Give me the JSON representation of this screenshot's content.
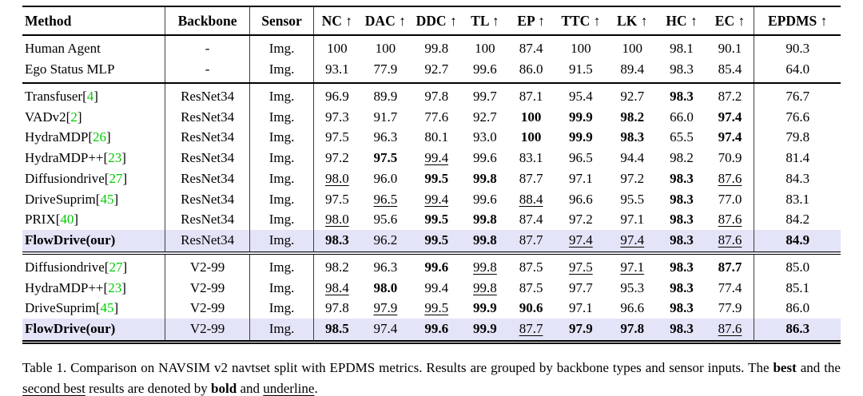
{
  "colors": {
    "highlight_row": "#e4e4f8",
    "citation_green": "#00cc00",
    "rule_black": "#000000",
    "divider_gray": "#3f3f3f"
  },
  "table": {
    "header": [
      {
        "key": "method",
        "label": "Method"
      },
      {
        "key": "backbone",
        "label": "Backbone"
      },
      {
        "key": "sensor",
        "label": "Sensor"
      },
      {
        "key": "nc",
        "label": "NC",
        "arrow": "↑"
      },
      {
        "key": "dac",
        "label": "DAC",
        "arrow": "↑"
      },
      {
        "key": "ddc",
        "label": "DDC",
        "arrow": "↑"
      },
      {
        "key": "tl",
        "label": "TL",
        "arrow": "↑"
      },
      {
        "key": "ep",
        "label": "EP",
        "arrow": "↑"
      },
      {
        "key": "ttc",
        "label": "TTC",
        "arrow": "↑"
      },
      {
        "key": "lk",
        "label": "LK",
        "arrow": "↑"
      },
      {
        "key": "hc",
        "label": "HC",
        "arrow": "↑"
      },
      {
        "key": "ec",
        "label": "EC",
        "arrow": "↑"
      },
      {
        "key": "epdms",
        "label": "EPDMS",
        "arrow": "↑"
      }
    ],
    "groups": [
      {
        "key": "baseline",
        "rows": [
          {
            "method": "Human Agent",
            "cite": "",
            "backbone": "-",
            "sensor": "Img.",
            "highlight": false,
            "bold_method": false,
            "values": [
              [
                "100",
                "n"
              ],
              [
                "100",
                "n"
              ],
              [
                "99.8",
                "n"
              ],
              [
                "100",
                "n"
              ],
              [
                "87.4",
                "n"
              ],
              [
                "100",
                "n"
              ],
              [
                "100",
                "n"
              ],
              [
                "98.1",
                "n"
              ],
              [
                "90.1",
                "n"
              ],
              [
                "90.3",
                "n"
              ]
            ]
          },
          {
            "method": "Ego Status MLP",
            "cite": "",
            "backbone": "-",
            "sensor": "Img.",
            "highlight": false,
            "bold_method": false,
            "values": [
              [
                "93.1",
                "n"
              ],
              [
                "77.9",
                "n"
              ],
              [
                "92.7",
                "n"
              ],
              [
                "99.6",
                "n"
              ],
              [
                "86.0",
                "n"
              ],
              [
                "91.5",
                "n"
              ],
              [
                "89.4",
                "n"
              ],
              [
                "98.3",
                "n"
              ],
              [
                "85.4",
                "n"
              ],
              [
                "64.0",
                "n"
              ]
            ]
          }
        ]
      },
      {
        "key": "resnet34",
        "rows": [
          {
            "method": "Transfuser",
            "cite": "4",
            "backbone": "ResNet34",
            "sensor": "Img.",
            "highlight": false,
            "bold_method": false,
            "values": [
              [
                "96.9",
                "n"
              ],
              [
                "89.9",
                "n"
              ],
              [
                "97.8",
                "n"
              ],
              [
                "99.7",
                "n"
              ],
              [
                "87.1",
                "n"
              ],
              [
                "95.4",
                "n"
              ],
              [
                "92.7",
                "n"
              ],
              [
                "98.3",
                "b"
              ],
              [
                "87.2",
                "n"
              ],
              [
                "76.7",
                "n"
              ]
            ]
          },
          {
            "method": "VADv2",
            "cite": "2",
            "backbone": "ResNet34",
            "sensor": "Img.",
            "highlight": false,
            "bold_method": false,
            "values": [
              [
                "97.3",
                "n"
              ],
              [
                "91.7",
                "n"
              ],
              [
                "77.6",
                "n"
              ],
              [
                "92.7",
                "n"
              ],
              [
                "100",
                "b"
              ],
              [
                "99.9",
                "b"
              ],
              [
                "98.2",
                "b"
              ],
              [
                "66.0",
                "n"
              ],
              [
                "97.4",
                "b"
              ],
              [
                "76.6",
                "n"
              ]
            ]
          },
          {
            "method": "HydraMDP",
            "cite": "26",
            "backbone": "ResNet34",
            "sensor": "Img.",
            "highlight": false,
            "bold_method": false,
            "values": [
              [
                "97.5",
                "n"
              ],
              [
                "96.3",
                "n"
              ],
              [
                "80.1",
                "n"
              ],
              [
                "93.0",
                "n"
              ],
              [
                "100",
                "b"
              ],
              [
                "99.9",
                "b"
              ],
              [
                "98.3",
                "b"
              ],
              [
                "65.5",
                "n"
              ],
              [
                "97.4",
                "b"
              ],
              [
                "79.8",
                "n"
              ]
            ]
          },
          {
            "method": "HydraMDP++",
            "cite": "23",
            "backbone": "ResNet34",
            "sensor": "Img.",
            "highlight": false,
            "bold_method": false,
            "values": [
              [
                "97.2",
                "n"
              ],
              [
                "97.5",
                "b"
              ],
              [
                "99.4",
                "u"
              ],
              [
                "99.6",
                "n"
              ],
              [
                "83.1",
                "n"
              ],
              [
                "96.5",
                "n"
              ],
              [
                "94.4",
                "n"
              ],
              [
                "98.2",
                "n"
              ],
              [
                "70.9",
                "n"
              ],
              [
                "81.4",
                "n"
              ]
            ]
          },
          {
            "method": "Diffusiondrive",
            "cite": "27",
            "backbone": "ResNet34",
            "sensor": "Img.",
            "highlight": false,
            "bold_method": false,
            "values": [
              [
                "98.0",
                "u"
              ],
              [
                "96.0",
                "n"
              ],
              [
                "99.5",
                "b"
              ],
              [
                "99.8",
                "b"
              ],
              [
                "87.7",
                "n"
              ],
              [
                "97.1",
                "n"
              ],
              [
                "97.2",
                "n"
              ],
              [
                "98.3",
                "b"
              ],
              [
                "87.6",
                "u"
              ],
              [
                "84.3",
                "n"
              ]
            ]
          },
          {
            "method": "DriveSuprim",
            "cite": "45",
            "backbone": "ResNet34",
            "sensor": "Img.",
            "highlight": false,
            "bold_method": false,
            "values": [
              [
                "97.5",
                "n"
              ],
              [
                "96.5",
                "u"
              ],
              [
                "99.4",
                "u"
              ],
              [
                "99.6",
                "n"
              ],
              [
                "88.4",
                "u"
              ],
              [
                "96.6",
                "n"
              ],
              [
                "95.5",
                "n"
              ],
              [
                "98.3",
                "b"
              ],
              [
                "77.0",
                "n"
              ],
              [
                "83.1",
                "n"
              ]
            ]
          },
          {
            "method": "PRIX",
            "cite": "40",
            "backbone": "ResNet34",
            "sensor": "Img.",
            "highlight": false,
            "bold_method": false,
            "values": [
              [
                "98.0",
                "u"
              ],
              [
                "95.6",
                "n"
              ],
              [
                "99.5",
                "b"
              ],
              [
                "99.8",
                "b"
              ],
              [
                "87.4",
                "n"
              ],
              [
                "97.2",
                "n"
              ],
              [
                "97.1",
                "n"
              ],
              [
                "98.3",
                "b"
              ],
              [
                "87.6",
                "u"
              ],
              [
                "84.2",
                "n"
              ]
            ]
          },
          {
            "method": "FlowDrive(our)",
            "cite": "",
            "backbone": "ResNet34",
            "sensor": "Img.",
            "highlight": true,
            "bold_method": true,
            "values": [
              [
                "98.3",
                "b"
              ],
              [
                "96.2",
                "n"
              ],
              [
                "99.5",
                "b"
              ],
              [
                "99.8",
                "b"
              ],
              [
                "87.7",
                "n"
              ],
              [
                "97.4",
                "u"
              ],
              [
                "97.4",
                "u"
              ],
              [
                "98.3",
                "b"
              ],
              [
                "87.6",
                "u"
              ],
              [
                "84.9",
                "b"
              ]
            ]
          }
        ]
      },
      {
        "key": "v299",
        "rows": [
          {
            "method": "Diffusiondrive",
            "cite": "27",
            "backbone": "V2-99",
            "sensor": "Img.",
            "highlight": false,
            "bold_method": false,
            "values": [
              [
                "98.2",
                "n"
              ],
              [
                "96.3",
                "n"
              ],
              [
                "99.6",
                "b"
              ],
              [
                "99.8",
                "u"
              ],
              [
                "87.5",
                "n"
              ],
              [
                "97.5",
                "u"
              ],
              [
                "97.1",
                "u"
              ],
              [
                "98.3",
                "b"
              ],
              [
                "87.7",
                "b"
              ],
              [
                "85.0",
                "n"
              ]
            ]
          },
          {
            "method": "HydraMDP++",
            "cite": "23",
            "backbone": "V2-99",
            "sensor": "Img.",
            "highlight": false,
            "bold_method": false,
            "values": [
              [
                "98.4",
                "u"
              ],
              [
                "98.0",
                "b"
              ],
              [
                "99.4",
                "n"
              ],
              [
                "99.8",
                "u"
              ],
              [
                "87.5",
                "n"
              ],
              [
                "97.7",
                "n"
              ],
              [
                "95.3",
                "n"
              ],
              [
                "98.3",
                "b"
              ],
              [
                "77.4",
                "n"
              ],
              [
                "85.1",
                "n"
              ]
            ]
          },
          {
            "method": "DriveSuprim",
            "cite": "45",
            "backbone": "V2-99",
            "sensor": "Img.",
            "highlight": false,
            "bold_method": false,
            "values": [
              [
                "97.8",
                "n"
              ],
              [
                "97.9",
                "u"
              ],
              [
                "99.5",
                "u"
              ],
              [
                "99.9",
                "b"
              ],
              [
                "90.6",
                "b"
              ],
              [
                "97.1",
                "n"
              ],
              [
                "96.6",
                "n"
              ],
              [
                "98.3",
                "b"
              ],
              [
                "77.9",
                "n"
              ],
              [
                "86.0",
                "n"
              ]
            ]
          },
          {
            "method": "FlowDrive(our)",
            "cite": "",
            "backbone": "V2-99",
            "sensor": "Img.",
            "highlight": true,
            "bold_method": true,
            "values": [
              [
                "98.5",
                "b"
              ],
              [
                "97.4",
                "n"
              ],
              [
                "99.6",
                "b"
              ],
              [
                "99.9",
                "b"
              ],
              [
                "87.7",
                "u"
              ],
              [
                "97.9",
                "b"
              ],
              [
                "97.8",
                "b"
              ],
              [
                "98.3",
                "b"
              ],
              [
                "87.6",
                "u"
              ],
              [
                "86.3",
                "b"
              ]
            ]
          }
        ]
      }
    ]
  },
  "caption": {
    "segments": [
      {
        "t": "Table 1. Comparison on NAVSIM v2 navtset split with EPDMS metrics. Results are grouped by backbone types and sensor inputs. The ",
        "s": "n"
      },
      {
        "t": "best",
        "s": "b"
      },
      {
        "t": " and the ",
        "s": "n"
      },
      {
        "t": "second best",
        "s": "u"
      },
      {
        "t": " results are denoted by ",
        "s": "n"
      },
      {
        "t": "bold",
        "s": "b"
      },
      {
        "t": " and ",
        "s": "n"
      },
      {
        "t": "underline",
        "s": "u"
      },
      {
        "t": ".",
        "s": "n"
      }
    ]
  }
}
